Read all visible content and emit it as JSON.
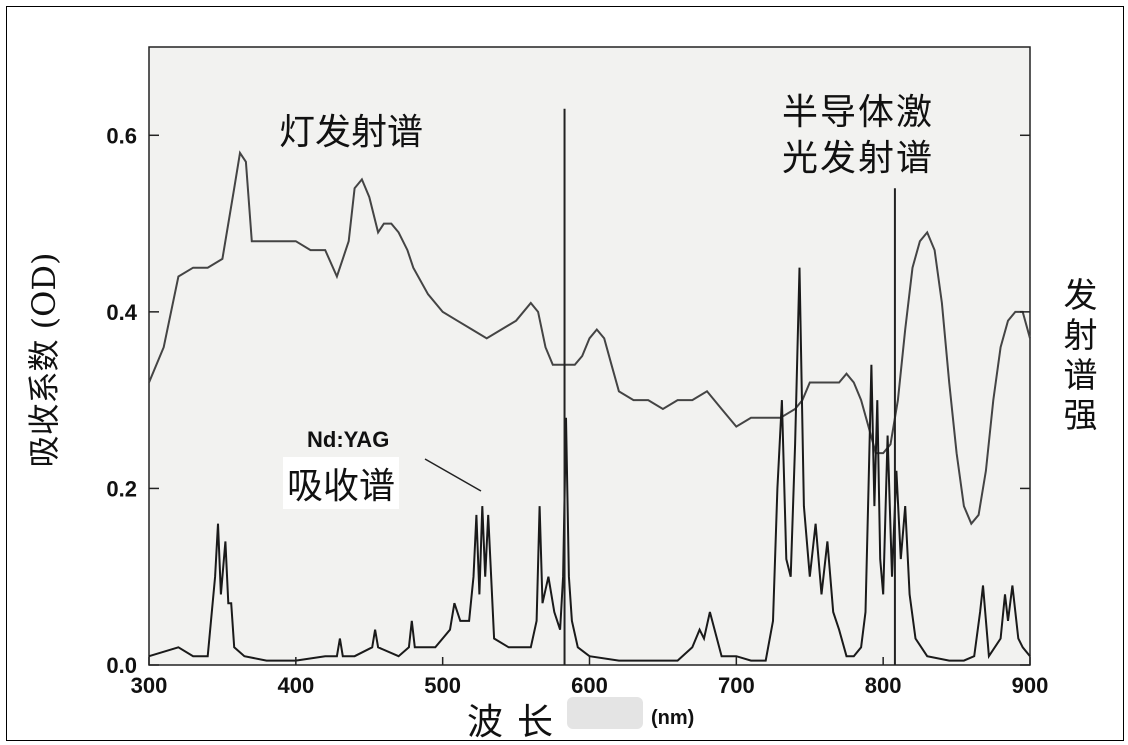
{
  "chart_data": {
    "type": "line",
    "title": "",
    "xlabel": "波长",
    "xlabel_unit": "(nm)",
    "ylabel": "吸收系数 (OD)",
    "ylabel_right": "发射谱强",
    "xlim": [
      300,
      900
    ],
    "ylim": [
      0,
      0.7
    ],
    "x_ticks": [
      300,
      400,
      500,
      600,
      700,
      800,
      900
    ],
    "y_ticks": [
      0.0,
      0.2,
      0.4,
      0.6
    ],
    "y_tick_labels": [
      "0.0",
      "0.2",
      "0.4",
      "0.6"
    ],
    "grid": false,
    "legend": "none",
    "annotations": [
      {
        "text": "灯发射谱"
      },
      {
        "text_lines": [
          "半导体激",
          "光发射谱"
        ]
      },
      {
        "text": "Nd:YAG"
      },
      {
        "text": "吸收谱"
      }
    ],
    "series": [
      {
        "x": [
          300,
          310,
          320,
          330,
          340,
          350,
          358,
          362,
          366,
          370,
          375,
          380,
          390,
          400,
          410,
          420,
          428,
          432,
          436,
          440,
          445,
          450,
          456,
          460,
          465,
          470,
          476,
          480,
          490,
          500,
          510,
          520,
          530,
          540,
          550,
          560,
          565,
          570,
          575,
          580,
          585,
          590,
          595,
          600,
          605,
          610,
          615,
          620,
          630,
          640,
          650,
          660,
          670,
          680,
          690,
          700,
          710,
          720,
          730,
          740,
          745,
          750,
          760,
          770,
          775,
          780,
          785,
          790,
          795,
          800,
          805,
          810,
          815,
          820,
          825,
          830,
          835,
          840,
          845,
          850,
          855,
          860,
          865,
          870,
          875,
          880,
          885,
          890,
          895,
          900
        ],
        "values": [
          0.32,
          0.36,
          0.44,
          0.45,
          0.45,
          0.46,
          0.54,
          0.58,
          0.57,
          0.48,
          0.48,
          0.48,
          0.48,
          0.48,
          0.47,
          0.47,
          0.44,
          0.46,
          0.48,
          0.54,
          0.55,
          0.53,
          0.49,
          0.5,
          0.5,
          0.49,
          0.47,
          0.45,
          0.42,
          0.4,
          0.39,
          0.38,
          0.37,
          0.38,
          0.39,
          0.41,
          0.4,
          0.36,
          0.34,
          0.34,
          0.34,
          0.34,
          0.35,
          0.37,
          0.38,
          0.37,
          0.34,
          0.31,
          0.3,
          0.3,
          0.29,
          0.3,
          0.3,
          0.31,
          0.29,
          0.27,
          0.28,
          0.28,
          0.28,
          0.29,
          0.3,
          0.32,
          0.32,
          0.32,
          0.33,
          0.32,
          0.3,
          0.27,
          0.24,
          0.24,
          0.25,
          0.3,
          0.38,
          0.45,
          0.48,
          0.49,
          0.47,
          0.41,
          0.32,
          0.24,
          0.18,
          0.16,
          0.17,
          0.22,
          0.3,
          0.36,
          0.39,
          0.4,
          0.4,
          0.37
        ]
      },
      {
        "x": [
          300,
          320,
          330,
          340,
          345,
          347,
          349,
          352,
          354,
          356,
          358,
          365,
          380,
          400,
          420,
          428,
          430,
          432,
          440,
          452,
          454,
          456,
          470,
          477,
          479,
          481,
          495,
          505,
          508,
          512,
          518,
          521,
          523,
          525,
          527,
          529,
          531,
          535,
          545,
          560,
          564,
          566,
          568,
          572,
          576,
          580,
          582,
          584,
          586,
          588,
          592,
          600,
          620,
          640,
          660,
          670,
          675,
          678,
          682,
          690,
          700,
          710,
          720,
          725,
          728,
          731,
          734,
          737,
          740,
          743,
          746,
          750,
          754,
          758,
          762,
          766,
          770,
          775,
          780,
          785,
          788,
          790,
          792,
          794,
          796,
          798,
          800,
          803,
          806,
          809,
          812,
          815,
          818,
          822,
          830,
          845,
          855,
          862,
          866,
          868,
          872,
          880,
          883,
          885,
          888,
          892,
          895,
          900
        ],
        "values": [
          0.01,
          0.02,
          0.01,
          0.01,
          0.1,
          0.16,
          0.08,
          0.14,
          0.07,
          0.07,
          0.02,
          0.01,
          0.005,
          0.005,
          0.01,
          0.01,
          0.03,
          0.01,
          0.01,
          0.02,
          0.04,
          0.02,
          0.01,
          0.02,
          0.05,
          0.02,
          0.02,
          0.04,
          0.07,
          0.05,
          0.05,
          0.1,
          0.17,
          0.08,
          0.18,
          0.1,
          0.17,
          0.03,
          0.02,
          0.02,
          0.05,
          0.18,
          0.07,
          0.1,
          0.06,
          0.04,
          0.1,
          0.28,
          0.1,
          0.05,
          0.02,
          0.01,
          0.005,
          0.005,
          0.005,
          0.02,
          0.04,
          0.03,
          0.06,
          0.01,
          0.01,
          0.005,
          0.005,
          0.05,
          0.2,
          0.3,
          0.12,
          0.1,
          0.25,
          0.45,
          0.18,
          0.1,
          0.16,
          0.08,
          0.14,
          0.06,
          0.04,
          0.01,
          0.01,
          0.02,
          0.06,
          0.2,
          0.34,
          0.18,
          0.3,
          0.12,
          0.08,
          0.26,
          0.1,
          0.22,
          0.12,
          0.18,
          0.08,
          0.03,
          0.01,
          0.005,
          0.005,
          0.01,
          0.06,
          0.09,
          0.01,
          0.03,
          0.08,
          0.05,
          0.09,
          0.03,
          0.02,
          0.01
        ]
      },
      {
        "x": [
          583,
          808
        ],
        "values": [
          0.63,
          0.54
        ]
      }
    ]
  }
}
